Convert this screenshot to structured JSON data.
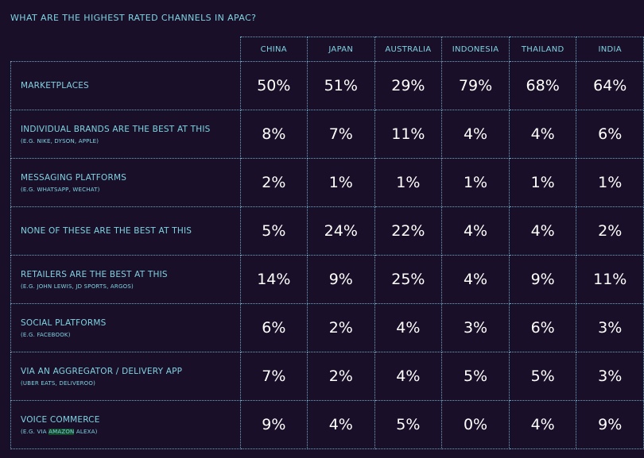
{
  "title": "WHAT ARE THE HIGHEST RATED CHANNELS IN APAC?",
  "columns": [
    "CHINA",
    "JAPAN",
    "AUSTRALIA",
    "INDONESIA",
    "THAILAND",
    "INDIA"
  ],
  "rows": [
    {
      "label": "MARKETPLACES",
      "sub": "",
      "values": [
        "50%",
        "51%",
        "29%",
        "79%",
        "68%",
        "64%"
      ]
    },
    {
      "label": "INDIVIDUAL BRANDS ARE THE BEST AT THIS",
      "sub": "(E.G. NIKE, DYSON, APPLE)",
      "values": [
        "8%",
        "7%",
        "11%",
        "4%",
        "4%",
        "6%"
      ]
    },
    {
      "label": "MESSAGING PLATFORMS",
      "sub": "(E.G. WHATSAPP, WECHAT)",
      "values": [
        "2%",
        "1%",
        "1%",
        "1%",
        "1%",
        "1%"
      ]
    },
    {
      "label": "NONE OF THESE ARE THE BEST AT THIS",
      "sub": "",
      "values": [
        "5%",
        "24%",
        "22%",
        "4%",
        "4%",
        "2%"
      ]
    },
    {
      "label": "RETAILERS ARE THE BEST AT THIS",
      "sub": "(E.G. JOHN LEWIS, JD SPORTS, ARGOS)",
      "values": [
        "14%",
        "9%",
        "25%",
        "4%",
        "9%",
        "11%"
      ]
    },
    {
      "label": "SOCIAL PLATFORMS",
      "sub": "(E.G. FACEBOOK)",
      "values": [
        "6%",
        "2%",
        "4%",
        "3%",
        "6%",
        "3%"
      ]
    },
    {
      "label": "VIA AN AGGREGATOR / DELIVERY APP",
      "sub": "(UBER EATS, DELIVEROO)",
      "values": [
        "7%",
        "2%",
        "4%",
        "5%",
        "5%",
        "3%"
      ]
    },
    {
      "label": "VOICE COMMERCE",
      "sub_parts": [
        "(E.G. VIA ",
        "AMAZON",
        " ALEXA)"
      ],
      "values": [
        "9%",
        "4%",
        "5%",
        "0%",
        "4%",
        "9%"
      ]
    }
  ],
  "colors": {
    "background": "#1a0f28",
    "label_text": "#7fd3e2",
    "value_text": "#ffffff",
    "grid_line": "#6fa8c2",
    "highlight": "#134a2a"
  },
  "chart_data": {
    "type": "table",
    "title": "WHAT ARE THE HIGHEST RATED CHANNELS IN APAC?",
    "columns": [
      "CHINA",
      "JAPAN",
      "AUSTRALIA",
      "INDONESIA",
      "THAILAND",
      "INDIA"
    ],
    "categories": [
      "MARKETPLACES",
      "INDIVIDUAL BRANDS ARE THE BEST AT THIS",
      "MESSAGING PLATFORMS",
      "NONE OF THESE ARE THE BEST AT THIS",
      "RETAILERS ARE THE BEST AT THIS",
      "SOCIAL PLATFORMS",
      "VIA AN AGGREGATOR / DELIVERY APP",
      "VOICE COMMERCE"
    ],
    "series": [
      {
        "name": "CHINA",
        "values": [
          50,
          8,
          2,
          5,
          14,
          6,
          7,
          9
        ]
      },
      {
        "name": "JAPAN",
        "values": [
          51,
          7,
          1,
          24,
          9,
          2,
          2,
          4
        ]
      },
      {
        "name": "AUSTRALIA",
        "values": [
          29,
          11,
          1,
          22,
          25,
          4,
          4,
          5
        ]
      },
      {
        "name": "INDONESIA",
        "values": [
          79,
          4,
          1,
          4,
          4,
          3,
          5,
          0
        ]
      },
      {
        "name": "THAILAND",
        "values": [
          68,
          4,
          1,
          4,
          9,
          6,
          5,
          4
        ]
      },
      {
        "name": "INDIA",
        "values": [
          64,
          6,
          1,
          2,
          11,
          3,
          3,
          9
        ]
      }
    ],
    "unit": "%"
  }
}
